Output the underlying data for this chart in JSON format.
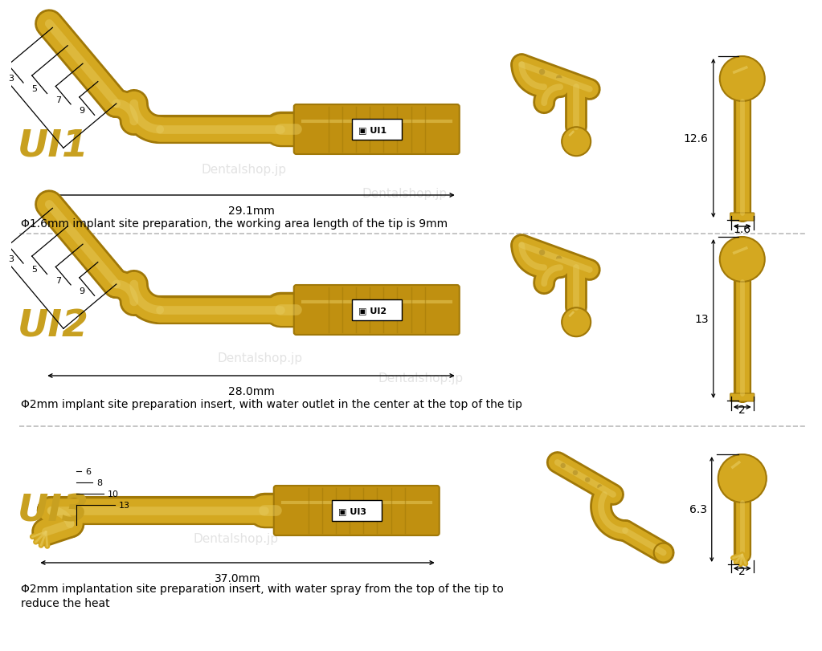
{
  "bg": "#ffffff",
  "gold": "#D4A820",
  "gold_dark": "#A07808",
  "gold_mid": "#C09010",
  "gold_light": "#E8CC60",
  "black": "#000000",
  "label_color": "#C8A020",
  "dash_color": "#bbbbbb",
  "wm_color": "#cccccc",
  "figsize": [
    10.0,
    7.92
  ],
  "dpi": 100,
  "rows": [
    {
      "label": "UI1",
      "length": "29.1mm",
      "tip_dims": [
        "9",
        "7",
        "5",
        "3"
      ],
      "rs_top": "12.6",
      "rs_bot": "1.6",
      "desc": "Φ1.6mm implant site preparation, the working area length of the tip is 9mm"
    },
    {
      "label": "UI2",
      "length": "28.0mm",
      "tip_dims": [
        "9",
        "7",
        "5",
        "3"
      ],
      "rs_top": "13",
      "rs_bot": "2",
      "desc": "Φ2mm implant site preparation insert, with water outlet in the center at the top of the tip"
    },
    {
      "label": "UI3",
      "length": "37.0mm",
      "tip_dims": [
        "13",
        "10",
        "8",
        "6"
      ],
      "rs_top": "6.3",
      "rs_bot": "2",
      "desc": "Φ2mm implantation site preparation insert, with water spray from the top of the tip to\nreduce the heat"
    }
  ]
}
